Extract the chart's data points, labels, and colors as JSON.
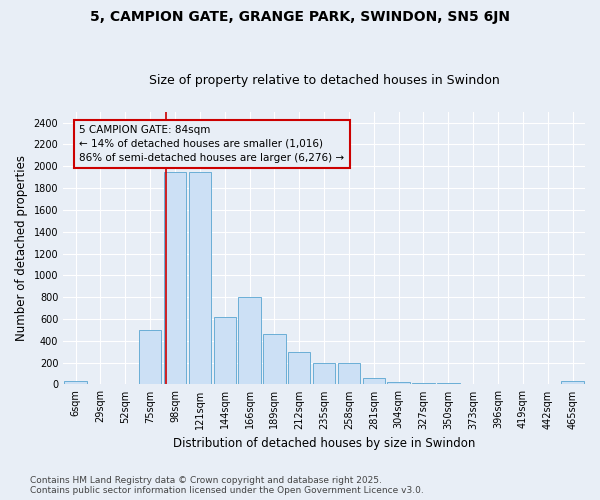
{
  "title": "5, CAMPION GATE, GRANGE PARK, SWINDON, SN5 6JN",
  "subtitle": "Size of property relative to detached houses in Swindon",
  "xlabel": "Distribution of detached houses by size in Swindon",
  "ylabel": "Number of detached properties",
  "bar_labels": [
    "6sqm",
    "29sqm",
    "52sqm",
    "75sqm",
    "98sqm",
    "121sqm",
    "144sqm",
    "166sqm",
    "189sqm",
    "212sqm",
    "235sqm",
    "258sqm",
    "281sqm",
    "304sqm",
    "327sqm",
    "350sqm",
    "373sqm",
    "396sqm",
    "419sqm",
    "442sqm",
    "465sqm"
  ],
  "bar_values": [
    30,
    0,
    0,
    500,
    1950,
    1950,
    620,
    800,
    460,
    300,
    195,
    195,
    60,
    25,
    15,
    10,
    8,
    0,
    0,
    0,
    28
  ],
  "bar_color": "#cce0f5",
  "bar_edge_color": "#6aaed6",
  "ylim": [
    0,
    2500
  ],
  "yticks": [
    0,
    200,
    400,
    600,
    800,
    1000,
    1200,
    1400,
    1600,
    1800,
    2000,
    2200,
    2400
  ],
  "property_label": "5 CAMPION GATE: 84sqm",
  "annotation_line1": "← 14% of detached houses are smaller (1,016)",
  "annotation_line2": "86% of semi-detached houses are larger (6,276) →",
  "vline_color": "#cc0000",
  "background_color": "#e8eef6",
  "footer_line1": "Contains HM Land Registry data © Crown copyright and database right 2025.",
  "footer_line2": "Contains public sector information licensed under the Open Government Licence v3.0.",
  "grid_color": "#ffffff",
  "title_fontsize": 10,
  "subtitle_fontsize": 9,
  "axis_label_fontsize": 8.5,
  "tick_fontsize": 7,
  "annotation_fontsize": 7.5,
  "footer_fontsize": 6.5,
  "vline_x": 3.62
}
